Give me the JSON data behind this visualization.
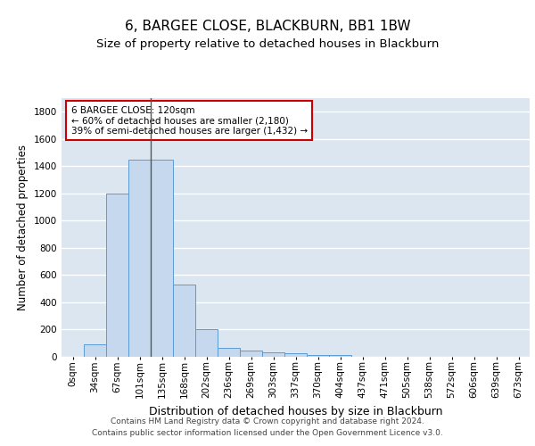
{
  "title": "6, BARGEE CLOSE, BLACKBURN, BB1 1BW",
  "subtitle": "Size of property relative to detached houses in Blackburn",
  "xlabel": "Distribution of detached houses by size in Blackburn",
  "ylabel": "Number of detached properties",
  "footer_line1": "Contains HM Land Registry data © Crown copyright and database right 2024.",
  "footer_line2": "Contains public sector information licensed under the Open Government Licence v3.0.",
  "categories": [
    "0sqm",
    "34sqm",
    "67sqm",
    "101sqm",
    "135sqm",
    "168sqm",
    "202sqm",
    "236sqm",
    "269sqm",
    "303sqm",
    "337sqm",
    "370sqm",
    "404sqm",
    "437sqm",
    "471sqm",
    "505sqm",
    "538sqm",
    "572sqm",
    "606sqm",
    "639sqm",
    "673sqm"
  ],
  "bar_values": [
    0,
    90,
    1200,
    1450,
    1450,
    530,
    205,
    65,
    48,
    35,
    28,
    10,
    10,
    0,
    0,
    0,
    0,
    0,
    0,
    0,
    0
  ],
  "bar_color": "#c5d8ed",
  "bar_edge_color": "#5b9bd5",
  "background_color": "#dce6f0",
  "grid_color": "#ffffff",
  "ylim": [
    0,
    1900
  ],
  "yticks": [
    0,
    200,
    400,
    600,
    800,
    1000,
    1200,
    1400,
    1600,
    1800
  ],
  "vline_color": "#555555",
  "annotation_text": "6 BARGEE CLOSE: 120sqm\n← 60% of detached houses are smaller (2,180)\n39% of semi-detached houses are larger (1,432) →",
  "annotation_box_edgecolor": "#cc0000",
  "title_fontsize": 11,
  "subtitle_fontsize": 9.5,
  "ylabel_fontsize": 8.5,
  "xlabel_fontsize": 9,
  "tick_fontsize": 7.5,
  "footer_fontsize": 6.5,
  "annotation_fontsize": 7.5
}
